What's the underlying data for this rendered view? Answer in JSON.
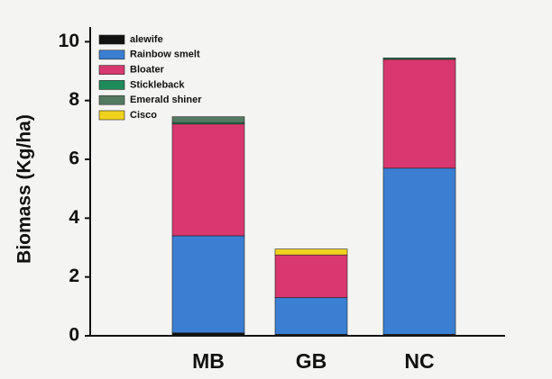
{
  "chart_data": {
    "type": "stacked_bar",
    "y_label": "Biomass (Kg/ha)",
    "categories": [
      "MB",
      "GB",
      "NC"
    ],
    "series": [
      {
        "name": "alewife",
        "color": "#111111",
        "values": [
          0.1,
          0.05,
          0.05
        ]
      },
      {
        "name": "Rainbow smelt",
        "color": "#3a7fd2",
        "values": [
          3.3,
          1.25,
          5.65
        ]
      },
      {
        "name": "Bloater",
        "color": "#d8386f",
        "values": [
          3.8,
          1.45,
          3.7
        ]
      },
      {
        "name": "Stickleback",
        "color": "#1f8a5a",
        "values": [
          0.05,
          0,
          0.05
        ]
      },
      {
        "name": "Emerald shiner",
        "color": "#557a62",
        "values": [
          0.2,
          0,
          0
        ]
      },
      {
        "name": "Cisco",
        "color": "#f0d21e",
        "values": [
          0,
          0.2,
          0
        ]
      }
    ],
    "ylim": [
      0,
      10.5
    ],
    "yticks": [
      0,
      2,
      4,
      6,
      8,
      10
    ],
    "legend": "upper left"
  }
}
